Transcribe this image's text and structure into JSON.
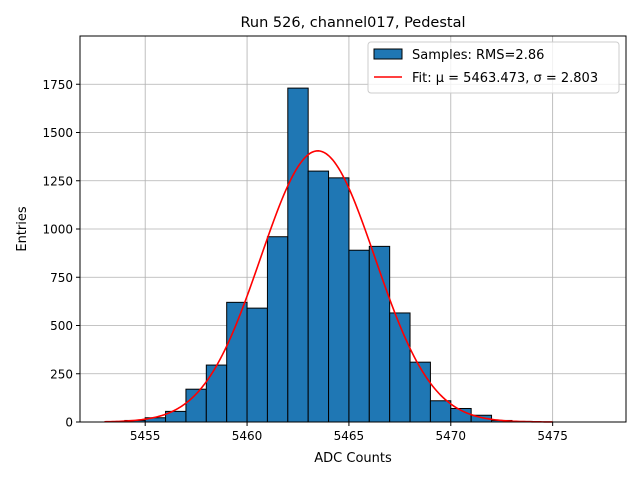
{
  "chart_data": {
    "type": "bar",
    "title": "Run 526, channel017, Pedestal",
    "xlabel": "ADC Counts",
    "ylabel": "Entries",
    "xlim": [
      5451.8,
      5478.6
    ],
    "ylim": [
      0,
      2000
    ],
    "xticks": [
      5455,
      5460,
      5465,
      5470,
      5475
    ],
    "yticks": [
      0,
      250,
      500,
      750,
      1000,
      1250,
      1500,
      1750
    ],
    "grid": true,
    "legend_position": "top-right",
    "colors": {
      "bars": "#1f77b4",
      "bar_edge": "#000000",
      "fit": "#ff0000",
      "grid": "#b0b0b0"
    },
    "histogram": {
      "name": "Samples: RMS=2.86",
      "bin_width": 1,
      "bins": [
        {
          "x0": 5454,
          "count": 8
        },
        {
          "x0": 5455,
          "count": 22
        },
        {
          "x0": 5456,
          "count": 55
        },
        {
          "x0": 5457,
          "count": 170
        },
        {
          "x0": 5458,
          "count": 295
        },
        {
          "x0": 5459,
          "count": 620
        },
        {
          "x0": 5460,
          "count": 590
        },
        {
          "x0": 5461,
          "count": 960
        },
        {
          "x0": 5462,
          "count": 1730
        },
        {
          "x0": 5463,
          "count": 1300
        },
        {
          "x0": 5464,
          "count": 1265
        },
        {
          "x0": 5465,
          "count": 890
        },
        {
          "x0": 5466,
          "count": 910
        },
        {
          "x0": 5467,
          "count": 565
        },
        {
          "x0": 5468,
          "count": 310
        },
        {
          "x0": 5469,
          "count": 110
        },
        {
          "x0": 5470,
          "count": 70
        },
        {
          "x0": 5471,
          "count": 35
        },
        {
          "x0": 5472,
          "count": 8
        },
        {
          "x0": 5473,
          "count": 3
        }
      ]
    },
    "fit": {
      "name": "Fit: μ = 5463.473, σ = 2.803",
      "mu": 5463.473,
      "sigma": 2.803,
      "amplitude": 1405,
      "x_range": [
        5453,
        5475
      ]
    }
  }
}
